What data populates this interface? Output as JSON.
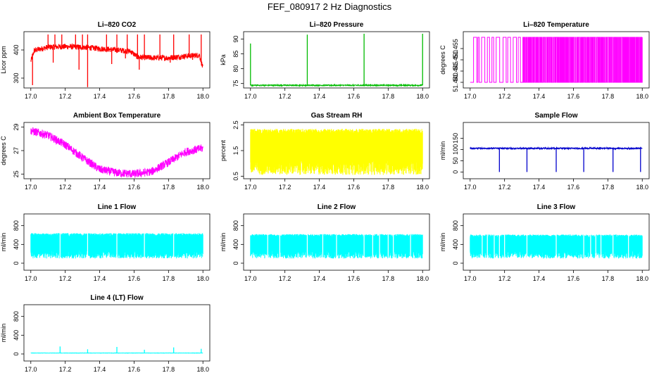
{
  "figure": {
    "title": "FEF_080917  2 Hz Diagnostics"
  },
  "chart_data": [
    {
      "id": "co2",
      "type": "line",
      "title": "Li–820 CO2",
      "xlabel": "",
      "ylabel": "Licor ppm",
      "xlim": [
        17.0,
        18.0
      ],
      "ylim": [
        265,
        465
      ],
      "xticks": [
        "17.0",
        "17.2",
        "17.4",
        "17.6",
        "17.8",
        "18.0"
      ],
      "yticks": [
        "300",
        "400"
      ],
      "ytick_values": [
        300,
        400
      ],
      "color": "#ff0000",
      "baseline": [
        [
          17.0,
          360
        ],
        [
          17.02,
          398
        ],
        [
          17.1,
          410
        ],
        [
          17.2,
          412
        ],
        [
          17.3,
          410
        ],
        [
          17.4,
          405
        ],
        [
          17.5,
          400
        ],
        [
          17.58,
          395
        ],
        [
          17.62,
          375
        ],
        [
          17.7,
          372
        ],
        [
          17.8,
          372
        ],
        [
          17.9,
          378
        ],
        [
          17.98,
          382
        ],
        [
          18.0,
          335
        ]
      ],
      "noise": 10,
      "spikes_up": [
        [
          17.1,
          455
        ],
        [
          17.14,
          455
        ],
        [
          17.18,
          455
        ],
        [
          17.26,
          455
        ],
        [
          17.3,
          455
        ],
        [
          17.33,
          455
        ],
        [
          17.44,
          455
        ],
        [
          17.5,
          455
        ],
        [
          17.56,
          455
        ],
        [
          17.62,
          455
        ],
        [
          17.66,
          455
        ],
        [
          17.75,
          455
        ],
        [
          17.83,
          455
        ],
        [
          17.92,
          455
        ],
        [
          17.99,
          455
        ]
      ],
      "spikes_down": [
        [
          17.01,
          275
        ],
        [
          17.13,
          355
        ],
        [
          17.28,
          330
        ],
        [
          17.33,
          268
        ],
        [
          17.47,
          350
        ],
        [
          17.55,
          370
        ],
        [
          17.63,
          330
        ],
        [
          17.81,
          355
        ],
        [
          17.94,
          365
        ]
      ]
    },
    {
      "id": "pressure",
      "type": "line",
      "title": "Li–820 Pressure",
      "xlabel": "",
      "ylabel": "kPa",
      "xlim": [
        17.0,
        18.0
      ],
      "ylim": [
        73.5,
        92.5
      ],
      "xticks": [
        "17.0",
        "17.2",
        "17.4",
        "17.6",
        "17.8",
        "18.0"
      ],
      "yticks": [
        "75",
        "80",
        "85",
        "90"
      ],
      "ytick_values": [
        75,
        80,
        85,
        90
      ],
      "color": "#00bb00",
      "baseline": [
        [
          17.0,
          74.4
        ],
        [
          18.0,
          74.4
        ]
      ],
      "noise": 0.2,
      "spikes_up": [
        [
          17.0,
          88.5
        ],
        [
          17.33,
          91.5
        ],
        [
          17.66,
          91.8
        ],
        [
          18.0,
          91.8
        ]
      ],
      "spikes_down": []
    },
    {
      "id": "temperature",
      "type": "line",
      "title": "Li–820 Temperature",
      "xlabel": "",
      "ylabel": "degrees C",
      "xlim": [
        17.0,
        18.0
      ],
      "ylim": [
        51.4375,
        51.4625
      ],
      "xticks": [
        "17.0",
        "17.2",
        "17.4",
        "17.6",
        "17.8",
        "18.0"
      ],
      "yticks": [
        "51.440",
        "51.445",
        "51.450",
        "51.455"
      ],
      "ytick_values": [
        51.44,
        51.445,
        51.45,
        51.455
      ],
      "color": "#ff00ff",
      "levels": [
        51.44,
        51.46
      ],
      "mode": "toggle"
    },
    {
      "id": "ambient",
      "type": "line",
      "title": "Ambient Box Temperature",
      "xlabel": "",
      "ylabel": "degrees C",
      "xlim": [
        17.0,
        18.0
      ],
      "ylim": [
        24.6,
        29.4
      ],
      "xticks": [
        "17.0",
        "17.2",
        "17.4",
        "17.6",
        "17.8",
        "18.0"
      ],
      "yticks": [
        "25",
        "27",
        "29"
      ],
      "ytick_values": [
        25,
        27,
        29
      ],
      "color": "#ff00ff",
      "baseline": [
        [
          17.0,
          28.7
        ],
        [
          17.1,
          28.3
        ],
        [
          17.2,
          27.5
        ],
        [
          17.3,
          26.4
        ],
        [
          17.4,
          25.4
        ],
        [
          17.5,
          25.1
        ],
        [
          17.6,
          25.0
        ],
        [
          17.7,
          25.2
        ],
        [
          17.8,
          26.0
        ],
        [
          17.9,
          26.9
        ],
        [
          18.0,
          27.2
        ]
      ],
      "noise": 0.35,
      "spikes_up": [],
      "spikes_down": []
    },
    {
      "id": "rh",
      "type": "line",
      "title": "Gas Stream RH",
      "xlabel": "",
      "ylabel": "percent",
      "xlim": [
        17.0,
        18.0
      ],
      "ylim": [
        0.4,
        2.6
      ],
      "xticks": [
        "17.0",
        "17.2",
        "17.4",
        "17.6",
        "17.8",
        "18.0"
      ],
      "yticks": [
        "0.5",
        "1.5",
        "2.5"
      ],
      "ytick_values": [
        0.5,
        1.5,
        2.5
      ],
      "color": "#ffff00",
      "band": [
        0.55,
        2.35
      ],
      "mode": "band"
    },
    {
      "id": "sample",
      "type": "line",
      "title": "Sample Flow",
      "xlabel": "",
      "ylabel": "ml/min",
      "xlim": [
        17.0,
        18.0
      ],
      "ylim": [
        -30,
        220
      ],
      "xticks": [
        "17.0",
        "17.2",
        "17.4",
        "17.6",
        "17.8",
        "18.0"
      ],
      "yticks": [
        "0",
        "50",
        "100",
        "150"
      ],
      "ytick_values": [
        0,
        50,
        100,
        150
      ],
      "color": "#0000cc",
      "baseline": [
        [
          17.0,
          105
        ],
        [
          18.0,
          105
        ]
      ],
      "noise": 3,
      "spikes_up": [],
      "spikes_down": [
        [
          17.17,
          0
        ],
        [
          17.33,
          0
        ],
        [
          17.5,
          0
        ],
        [
          17.66,
          0
        ],
        [
          17.83,
          0
        ],
        [
          17.99,
          0
        ]
      ]
    },
    {
      "id": "line1",
      "type": "line",
      "title": "Line 1 Flow",
      "xlabel": "",
      "ylabel": "ml/min",
      "xlim": [
        17.0,
        18.0
      ],
      "ylim": [
        -150,
        1050
      ],
      "xticks": [
        "17.0",
        "17.2",
        "17.4",
        "17.6",
        "17.8",
        "18.0"
      ],
      "yticks": [
        "0",
        "400",
        "800"
      ],
      "ytick_values": [
        0,
        400,
        800
      ],
      "color": "#00ffff",
      "band": [
        100,
        640
      ],
      "gaps": [
        17.17,
        17.33,
        17.5,
        17.66,
        17.83
      ],
      "mode": "band"
    },
    {
      "id": "line2",
      "type": "line",
      "title": "Line 2 Flow",
      "xlabel": "",
      "ylabel": "ml/min",
      "xlim": [
        17.0,
        18.0
      ],
      "ylim": [
        -150,
        1050
      ],
      "xticks": [
        "17.0",
        "17.2",
        "17.4",
        "17.6",
        "17.8",
        "18.0"
      ],
      "yticks": [
        "0",
        "400",
        "800"
      ],
      "ytick_values": [
        0,
        400,
        800
      ],
      "color": "#00ffff",
      "band": [
        100,
        620
      ],
      "gaps": [
        17.1,
        17.17,
        17.33,
        17.42,
        17.5,
        17.66,
        17.71,
        17.75,
        17.8,
        17.83,
        17.93
      ],
      "mode": "band"
    },
    {
      "id": "line3",
      "type": "line",
      "title": "Line 3 Flow",
      "xlabel": "",
      "ylabel": "ml/min",
      "xlim": [
        17.0,
        18.0
      ],
      "ylim": [
        -150,
        1050
      ],
      "xticks": [
        "17.0",
        "17.2",
        "17.4",
        "17.6",
        "17.8",
        "18.0"
      ],
      "yticks": [
        "0",
        "400",
        "800"
      ],
      "ytick_values": [
        0,
        400,
        800
      ],
      "color": "#00ffff",
      "band": [
        100,
        610
      ],
      "gaps": [
        17.07,
        17.1,
        17.14,
        17.17,
        17.2,
        17.33,
        17.5,
        17.66,
        17.7,
        17.73,
        17.76,
        17.83,
        17.92
      ],
      "mode": "band"
    },
    {
      "id": "line4",
      "type": "line",
      "title": "Line 4 (LT) Flow",
      "xlabel": "",
      "ylabel": "ml/min",
      "xlim": [
        17.0,
        18.0
      ],
      "ylim": [
        -150,
        1050
      ],
      "xticks": [
        "17.0",
        "17.2",
        "17.4",
        "17.6",
        "17.8",
        "18.0"
      ],
      "yticks": [
        "0",
        "400",
        "800"
      ],
      "ytick_values": [
        0,
        400,
        800
      ],
      "color": "#00ffff",
      "baseline": [
        [
          17.0,
          20
        ],
        [
          18.0,
          20
        ]
      ],
      "noise": 3,
      "spikes_up": [
        [
          17.17,
          160
        ],
        [
          17.33,
          100
        ],
        [
          17.5,
          150
        ],
        [
          17.66,
          90
        ],
        [
          17.83,
          140
        ],
        [
          17.99,
          110
        ]
      ],
      "spikes_down": []
    }
  ]
}
